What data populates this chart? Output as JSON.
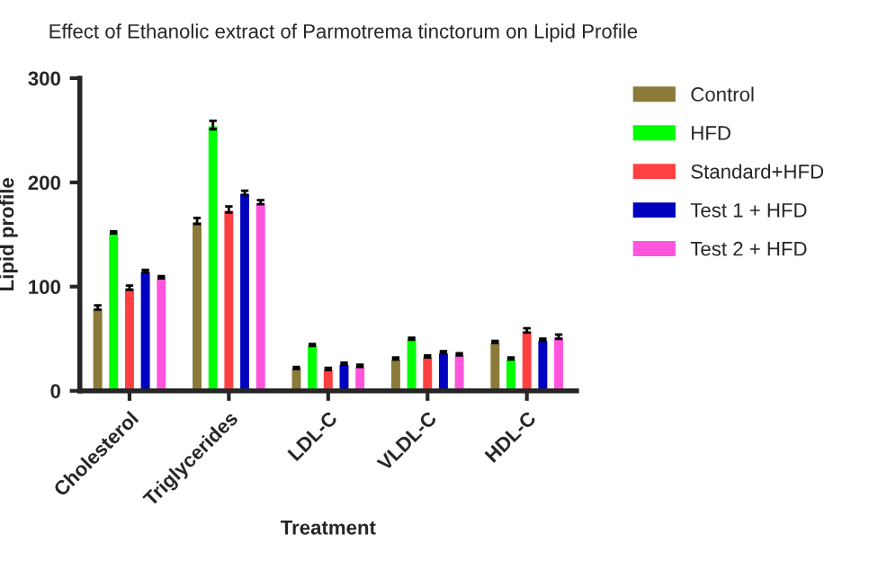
{
  "chart_data": {
    "type": "bar",
    "title": "Effect of Ethanolic extract of Parmotrema tinctorum on Lipid Profile",
    "xlabel": "Treatment",
    "ylabel": "Lipid profile",
    "categories": [
      "Cholesterol",
      "Triglycerides",
      "LDL-C",
      "VLDL-C",
      "HDL-C"
    ],
    "series": [
      {
        "name": "Control",
        "color": "#8b7a3a",
        "values": [
          80,
          163,
          22,
          31,
          47
        ],
        "errors": [
          2,
          3,
          1,
          1,
          1
        ]
      },
      {
        "name": "HFD",
        "color": "#00ff00",
        "values": [
          152,
          255,
          44,
          50,
          31
        ],
        "errors": [
          1,
          4,
          1,
          1,
          1
        ]
      },
      {
        "name": "Standard+HFD",
        "color": "#ff4040",
        "values": [
          99,
          174,
          21,
          33,
          58
        ],
        "errors": [
          2,
          3,
          1,
          1,
          2
        ]
      },
      {
        "name": "Test 1 + HFD",
        "color": "#0000c0",
        "values": [
          115,
          190,
          26,
          37,
          49
        ],
        "errors": [
          1,
          2,
          1,
          1,
          1
        ]
      },
      {
        "name": "Test 2 + HFD",
        "color": "#ff55dd",
        "values": [
          109,
          181,
          24,
          35,
          52
        ],
        "errors": [
          1,
          2,
          1,
          1,
          2
        ]
      }
    ],
    "ylim": [
      0,
      300
    ],
    "yticks": [
      0,
      100,
      200,
      300
    ],
    "grid": false,
    "legend": "right"
  }
}
